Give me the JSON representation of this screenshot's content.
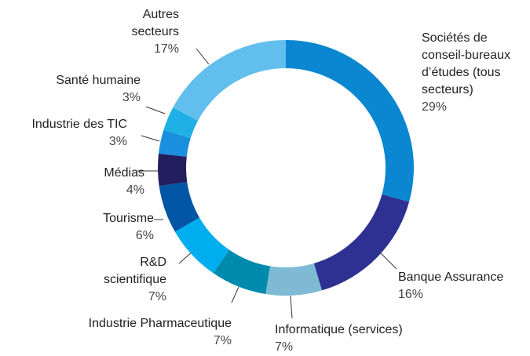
{
  "chart_data": {
    "type": "donut",
    "categories": [
      "Sociétés de conseil-bureaux d’études (tous secteurs)",
      "Banque Assurance",
      "Informatique (services)",
      "Industrie Pharmaceutique",
      "R&D scientifique",
      "Tourisme",
      "Médias",
      "Industrie des TIC",
      "Santé humaine",
      "Autres secteurs"
    ],
    "values": [
      29,
      16,
      7,
      7,
      7,
      6,
      4,
      3,
      3,
      17
    ],
    "value_labels": [
      "29%",
      "16%",
      "7%",
      "7%",
      "7%",
      "6%",
      "4%",
      "3%",
      "3%",
      "17%"
    ],
    "colors": [
      "#0a87d0",
      "#2e3192",
      "#7fbad4",
      "#008aad",
      "#00aeef",
      "#0055a4",
      "#231f5f",
      "#1a8fdd",
      "#1fb0e6",
      "#62bfed"
    ]
  }
}
